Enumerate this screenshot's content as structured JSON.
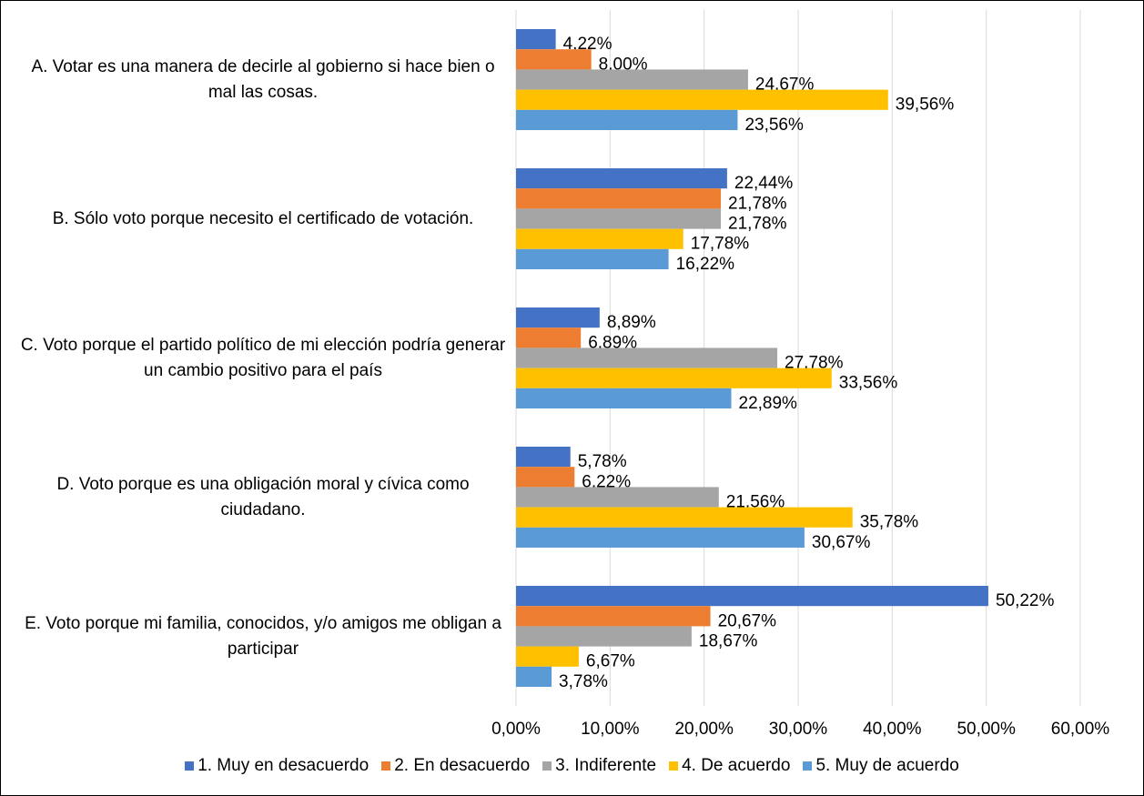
{
  "chart_data": {
    "type": "barh",
    "categories": [
      "A. Votar es una manera de decirle al gobierno si hace bien o mal las cosas.",
      "B. Sólo voto porque necesito el certificado de votación.",
      "C. Voto porque el partido político de mi elección podría generar un cambio positivo para el país",
      "D. Voto porque es una obligación moral y cívica como ciudadano.",
      "E. Voto porque mi familia, conocidos, y/o amigos me obligan a participar"
    ],
    "series": [
      {
        "name": "1. Muy en desacuerdo",
        "color": "#4472c4",
        "values": [
          4.22,
          22.44,
          8.89,
          5.78,
          50.22
        ],
        "value_labels": [
          "4,22%",
          "22,44%",
          "8,89%",
          "5,78%",
          "50,22%"
        ]
      },
      {
        "name": "2. En desacuerdo",
        "color": "#ed7d31",
        "values": [
          8.0,
          21.78,
          6.89,
          6.22,
          20.67
        ],
        "value_labels": [
          "8,00%",
          "21,78%",
          "6,89%",
          "6,22%",
          "20,67%"
        ]
      },
      {
        "name": "3. Indiferente",
        "color": "#a5a5a5",
        "values": [
          24.67,
          21.78,
          27.78,
          21.56,
          18.67
        ],
        "value_labels": [
          "24,67%",
          "21,78%",
          "27,78%",
          "21,56%",
          "18,67%"
        ]
      },
      {
        "name": "4. De acuerdo",
        "color": "#ffc000",
        "values": [
          39.56,
          17.78,
          33.56,
          35.78,
          6.67
        ],
        "value_labels": [
          "39,56%",
          "17,78%",
          "33,56%",
          "35,78%",
          "6,67%"
        ]
      },
      {
        "name": "5. Muy de acuerdo",
        "color": "#5b9bd5",
        "values": [
          23.56,
          16.22,
          22.89,
          30.67,
          3.78
        ],
        "value_labels": [
          "23,56%",
          "16,22%",
          "22,89%",
          "30,67%",
          "3,78%"
        ]
      }
    ],
    "xlim": [
      0,
      60
    ],
    "xticks": [
      {
        "value": 0,
        "label": "0,00%"
      },
      {
        "value": 10,
        "label": "10,00%"
      },
      {
        "value": 20,
        "label": "20,00%"
      },
      {
        "value": 30,
        "label": "30,00%"
      },
      {
        "value": 40,
        "label": "40,00%"
      },
      {
        "value": 50,
        "label": "50,00%"
      },
      {
        "value": 60,
        "label": "60,00%"
      }
    ],
    "grid": true,
    "legend": "bottom"
  }
}
